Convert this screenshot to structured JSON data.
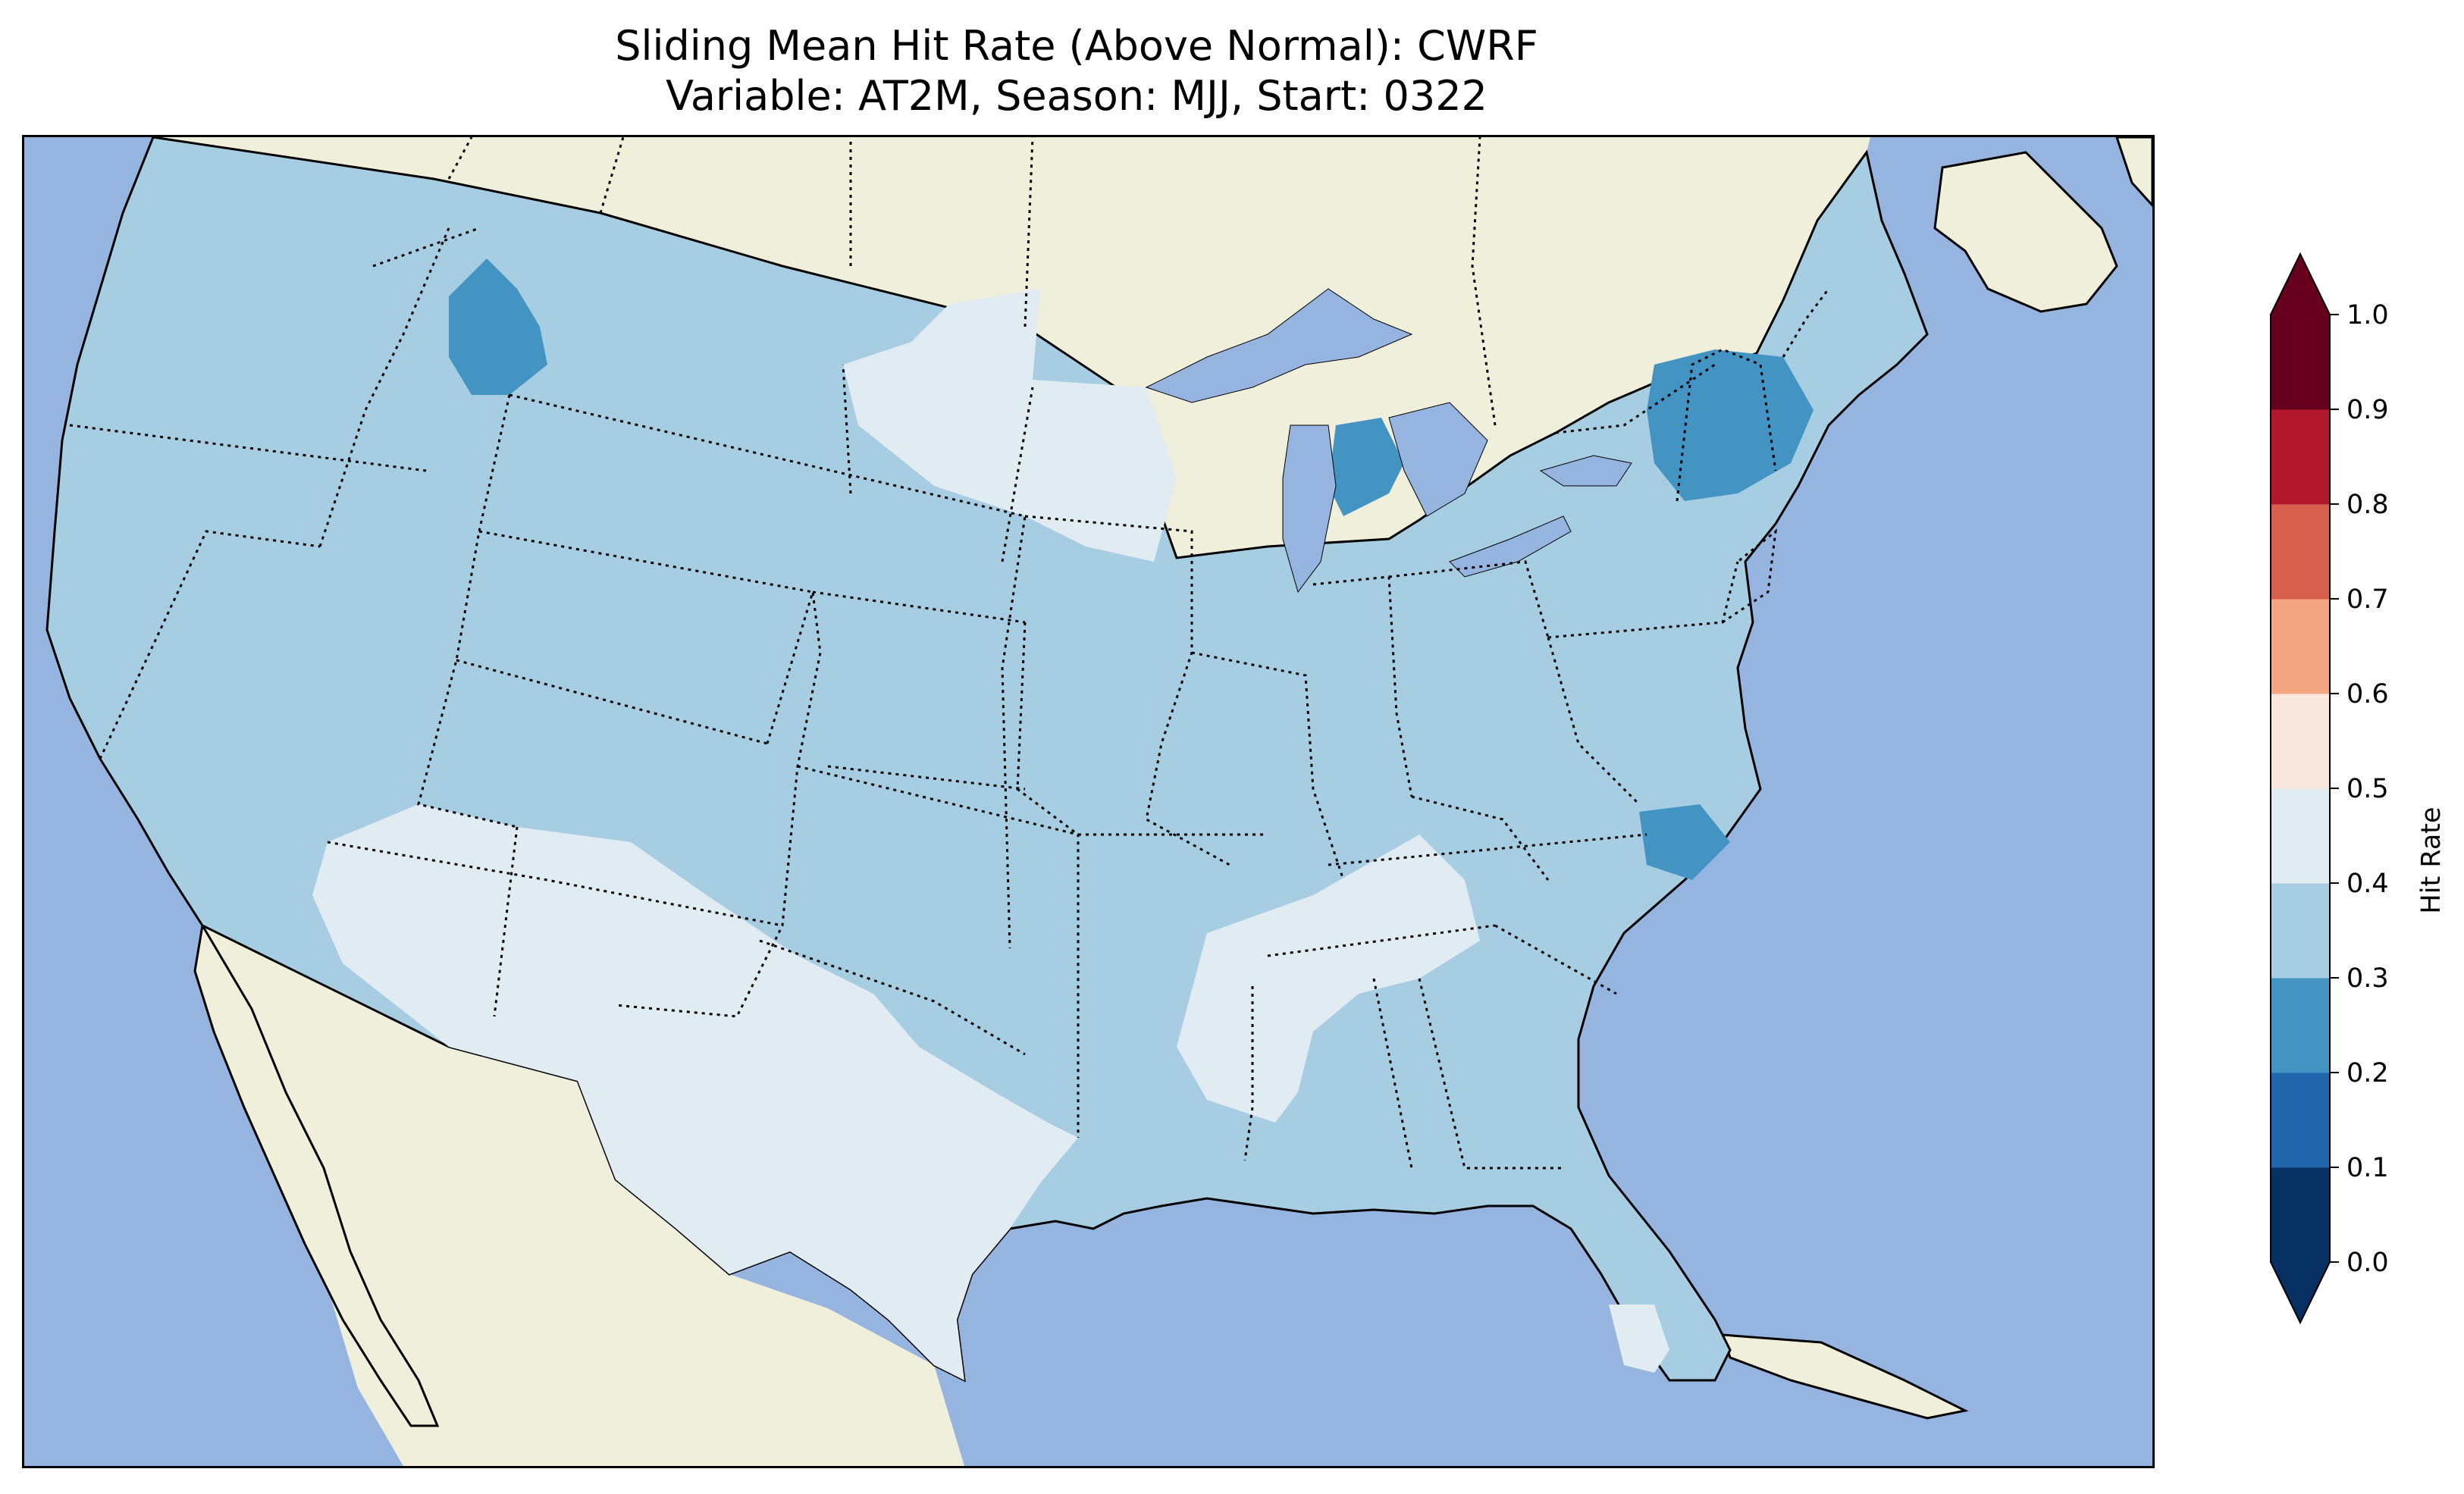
{
  "title": {
    "line1": "Sliding Mean Hit Rate (Above Normal): CWRF",
    "line2": "Variable: AT2M, Season: MJJ, Start: 0322"
  },
  "colors": {
    "ocean": "#96b4e0",
    "land": "#f0efdc",
    "lakes": "#96b4e0"
  },
  "colorbar": {
    "label": "Hit Rate",
    "ticks": [
      "0.0",
      "0.1",
      "0.2",
      "0.3",
      "0.4",
      "0.5",
      "0.6",
      "0.7",
      "0.8",
      "0.9",
      "1.0"
    ],
    "bins": [
      {
        "range": [
          0.0,
          0.1
        ],
        "color": "#053061"
      },
      {
        "range": [
          0.1,
          0.2
        ],
        "color": "#2166ac"
      },
      {
        "range": [
          0.2,
          0.3
        ],
        "color": "#4393c3"
      },
      {
        "range": [
          0.3,
          0.4
        ],
        "color": "#a6cde2"
      },
      {
        "range": [
          0.4,
          0.5
        ],
        "color": "#e1ebf2"
      },
      {
        "range": [
          0.5,
          0.6
        ],
        "color": "#f9e7de"
      },
      {
        "range": [
          0.6,
          0.7
        ],
        "color": "#f4a582"
      },
      {
        "range": [
          0.7,
          0.8
        ],
        "color": "#d6604d"
      },
      {
        "range": [
          0.8,
          0.9
        ],
        "color": "#b2182b"
      },
      {
        "range": [
          0.9,
          1.0
        ],
        "color": "#67001f"
      }
    ],
    "extend": "both"
  },
  "map": {
    "region": "Contiguous United States",
    "dominant_hit_rate_bin": [
      0.3,
      0.4
    ],
    "regions": [
      {
        "area": "Southwest (Nevada/Arizona/New Mexico/Texas)",
        "bin": [
          0.4,
          0.5
        ]
      },
      {
        "area": "Northern Minnesota / Wisconsin",
        "bin": [
          0.4,
          0.5
        ]
      },
      {
        "area": "Tennessee / Mississippi / Alabama",
        "bin": [
          0.4,
          0.5
        ]
      },
      {
        "area": "South Florida tip",
        "bin": [
          0.4,
          0.5
        ]
      },
      {
        "area": "Central Idaho / western Montana",
        "bin": [
          0.2,
          0.3
        ]
      },
      {
        "area": "Lower Michigan",
        "bin": [
          0.2,
          0.3
        ]
      },
      {
        "area": "New York / Vermont / New Hampshire",
        "bin": [
          0.2,
          0.3
        ]
      },
      {
        "area": "Chesapeake Bay / eastern Virginia",
        "bin": [
          0.2,
          0.3
        ]
      }
    ]
  }
}
